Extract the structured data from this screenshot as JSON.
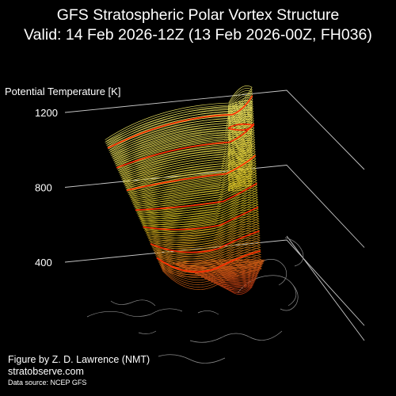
{
  "title_line1": "GFS Stratospheric Polar Vortex Structure",
  "title_line2": "Valid: 14 Feb 2026-12Z  (13 Feb 2026-00Z, FH036)",
  "credit": {
    "author": "Figure by Z. D. Lawrence (NMT)",
    "site": "stratobserve.com",
    "source": "Data source: NCEP GFS"
  },
  "chart_data": {
    "type": "3d-isosurface",
    "zlabel": "Potential Temperature [K]",
    "z_ticks": [
      400,
      800,
      1200
    ],
    "z_range": [
      300,
      1300
    ],
    "colors": {
      "background": "#000000",
      "highlight_contours": "#ff2a00",
      "contours_low": "#c85a14",
      "contours_mid": "#d8c020",
      "contours_high": "#e8e060",
      "grid_lines": "#c8c8c8",
      "map_outline": "#8a8a8a"
    },
    "highlighted_levels": [
      420,
      520,
      640,
      760,
      900,
      1060,
      1200
    ]
  }
}
